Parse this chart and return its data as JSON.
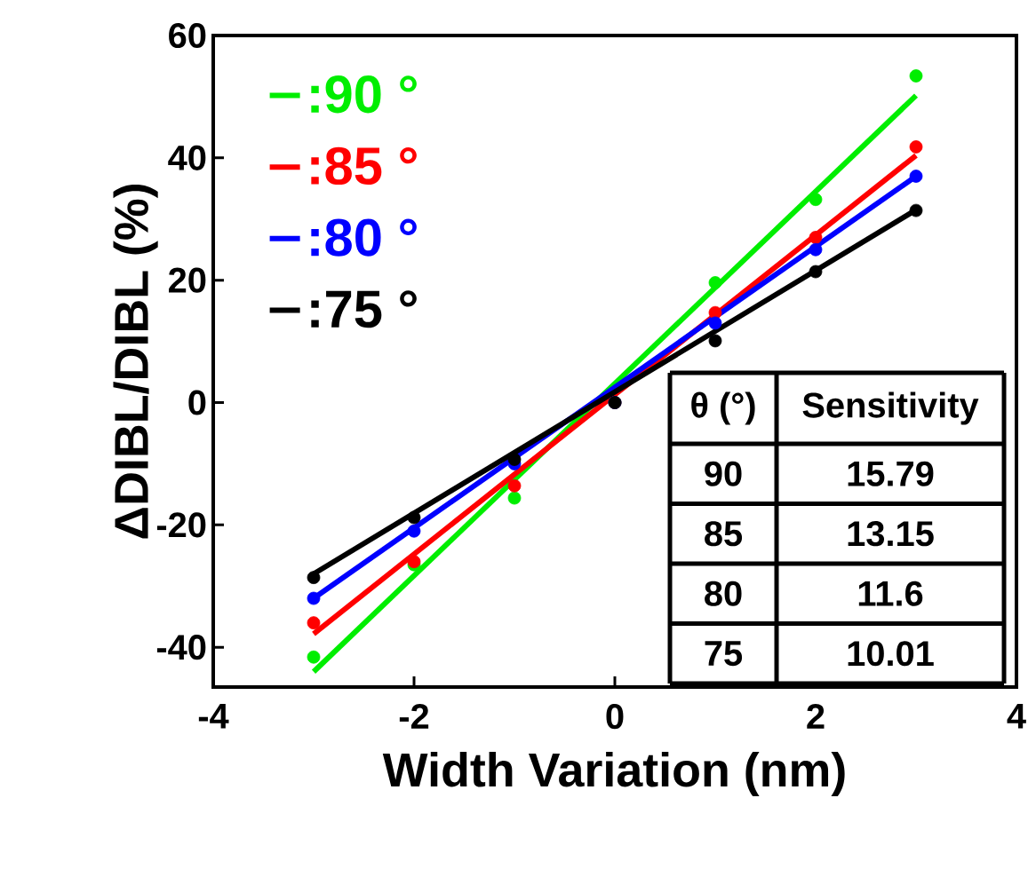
{
  "chart_data": {
    "type": "scatter",
    "xlabel": "Width Variation (nm)",
    "ylabel": "ΔDIBL/DIBL (%)",
    "xlim": [
      -4,
      4
    ],
    "ylim": [
      -46.5,
      60
    ],
    "xticks": [
      -4,
      -2,
      0,
      2,
      4
    ],
    "yticks": [
      -40,
      -20,
      0,
      20,
      40,
      60
    ],
    "legend": "top left",
    "line_style": "solid",
    "series": [
      {
        "name": ":90 °",
        "type": "line",
        "marker": "none",
        "color": "#00ee00",
        "x": [
          -3,
          3
        ],
        "values": [
          -44,
          50.2
        ]
      },
      {
        "name": ":85 °",
        "type": "line",
        "marker": "none",
        "color": "#ff0000",
        "x": [
          -3,
          3
        ],
        "values": [
          -37.8,
          40.4
        ]
      },
      {
        "name": ":80 °",
        "type": "line",
        "marker": "none",
        "color": "#0000ff",
        "x": [
          -3,
          3
        ],
        "values": [
          -32,
          37
        ]
      },
      {
        "name": ":75 °",
        "type": "line",
        "marker": "none",
        "color": "#000000",
        "x": [
          -3,
          3
        ],
        "values": [
          -28,
          31.5
        ]
      },
      {
        "marker": "circle",
        "color": "#00ee00",
        "x": [
          -3,
          -2,
          -1,
          0,
          1,
          2,
          3
        ],
        "values": [
          -41.6,
          -26.5,
          -15.6,
          0,
          19.6,
          33.2,
          53.4
        ]
      },
      {
        "marker": "circle",
        "color": "#ff0000",
        "x": [
          -3,
          -2,
          -1,
          0,
          1,
          2,
          3
        ],
        "values": [
          -36,
          -26,
          -13.6,
          0,
          14.7,
          27,
          41.8
        ]
      },
      {
        "marker": "circle",
        "color": "#0000ff",
        "x": [
          -3,
          -2,
          -1,
          0,
          1,
          2,
          3
        ],
        "values": [
          -32,
          -21,
          -10,
          0,
          13,
          25,
          37
        ]
      },
      {
        "marker": "circle",
        "color": "#000000",
        "x": [
          -3,
          -2,
          -1,
          0,
          1,
          2,
          3
        ],
        "values": [
          -28.6,
          -18.8,
          -9.3,
          0,
          10.1,
          21.4,
          31.4
        ]
      }
    ],
    "annotations": [
      "θ (°)",
      "Sensitivity",
      "90",
      "15.79",
      "85",
      "13.15",
      "80",
      "11.6",
      "75",
      "10.01"
    ]
  }
}
